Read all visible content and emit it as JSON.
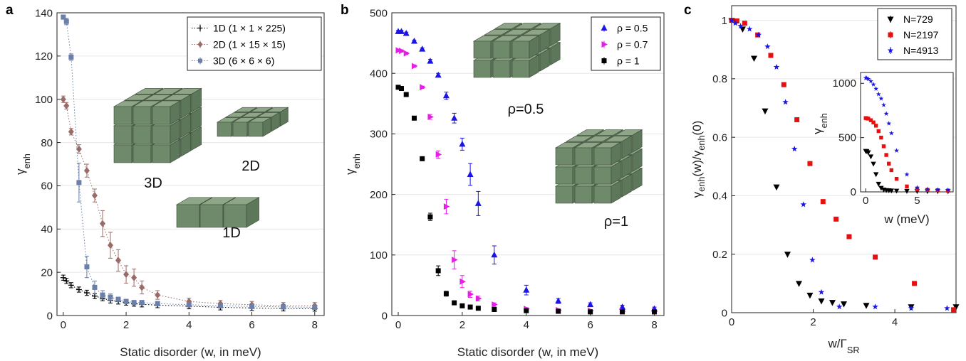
{
  "chart_data": [
    {
      "panel": "a",
      "type": "scatter",
      "xlabel": "Static disorder (w, in meV)",
      "ylabel": "γ_enh",
      "xlim": [
        -0.2,
        8.3
      ],
      "ylim": [
        0,
        140
      ],
      "xticks": [
        0,
        2,
        4,
        6,
        8
      ],
      "yticks": [
        0,
        20,
        40,
        60,
        80,
        100,
        120,
        140
      ],
      "grid": "horizontal",
      "legend_position": "top-right",
      "cube_labels": [
        "3D",
        "2D",
        "1D"
      ],
      "series": [
        {
          "name": "1D (1 × 1 × 225)",
          "color": "#000000",
          "marker": "plus",
          "line": "dotted",
          "x": [
            0,
            0.1,
            0.25,
            0.5,
            0.75,
            1,
            1.25,
            1.5,
            1.75,
            2,
            2.25,
            2.5,
            3,
            4,
            5,
            6,
            7,
            8
          ],
          "y": [
            17.5,
            16,
            14,
            12,
            10.5,
            9,
            8,
            7,
            6.5,
            6,
            5.5,
            5.2,
            4.8,
            4.3,
            3.8,
            3.5,
            3.3,
            3.2
          ],
          "err": [
            1.2,
            1.2,
            1.2,
            1.2,
            1.2,
            1.2,
            1.2,
            1.2,
            1.2,
            1.2,
            1.2,
            1.2,
            1.2,
            1.2,
            1.2,
            1.2,
            1.2,
            1.2
          ]
        },
        {
          "name": "2D (1 × 15 × 15)",
          "color": "#9b6b67",
          "marker": "diamond",
          "line": "dotted",
          "x": [
            0,
            0.1,
            0.25,
            0.5,
            0.75,
            1,
            1.25,
            1.5,
            1.75,
            2,
            2.25,
            2.5,
            3,
            4,
            5,
            6,
            7,
            8
          ],
          "y": [
            100,
            97,
            85,
            77,
            67,
            55.5,
            42.5,
            32.5,
            25.5,
            19,
            17.5,
            13,
            9.5,
            6.5,
            5.5,
            5,
            4.5,
            4.5
          ],
          "err": [
            1.5,
            1.5,
            1.5,
            2,
            3,
            3,
            6,
            6,
            5,
            4,
            4,
            3,
            2,
            1.5,
            1.5,
            1.5,
            1.5,
            1.5
          ]
        },
        {
          "name": "3D (6 × 6 × 6)",
          "color": "#6a7faa",
          "marker": "square",
          "line": "dotted",
          "x": [
            0,
            0.1,
            0.25,
            0.5,
            0.75,
            1,
            1.25,
            1.5,
            1.75,
            2,
            2.25,
            2.5,
            3,
            4,
            5,
            6,
            7,
            8
          ],
          "y": [
            138,
            136,
            119.5,
            61.5,
            22.5,
            13,
            9.5,
            8.5,
            7.5,
            6.5,
            6,
            6,
            5.5,
            5,
            4.5,
            4.2,
            4,
            3.8
          ],
          "err": [
            1,
            1.5,
            1.5,
            9,
            5,
            3,
            2,
            1.5,
            1,
            1,
            1,
            1,
            1,
            1,
            1,
            1,
            1,
            1
          ]
        }
      ]
    },
    {
      "panel": "b",
      "type": "scatter",
      "xlabel": "Static disorder (w, in meV)",
      "ylabel": "γ_enh",
      "xlim": [
        -0.2,
        8.3
      ],
      "ylim": [
        0,
        500
      ],
      "xticks": [
        0,
        2,
        4,
        6,
        8
      ],
      "yticks": [
        0,
        100,
        200,
        300,
        400,
        500
      ],
      "grid": "horizontal",
      "legend_position": "top-right",
      "cube_labels": [
        "ρ=0.5",
        "ρ=1"
      ],
      "series": [
        {
          "name": "ρ = 0.5",
          "color": "#1a14e6",
          "marker": "triangle-up",
          "x": [
            0,
            0.1,
            0.25,
            0.5,
            0.75,
            1,
            1.25,
            1.5,
            1.75,
            2,
            2.25,
            2.5,
            3,
            4,
            5,
            6,
            7,
            8
          ],
          "y": [
            469,
            469,
            466,
            453,
            440,
            420,
            397,
            363,
            326,
            283,
            233,
            185,
            100,
            42,
            24,
            18,
            14,
            11
          ],
          "err": [
            2,
            2,
            2,
            2,
            2,
            3,
            3,
            6,
            8,
            10,
            18,
            20,
            15,
            8,
            4,
            3,
            3,
            3
          ]
        },
        {
          "name": "ρ = 0.7",
          "color": "#e61ee6",
          "marker": "triangle-right",
          "x": [
            0,
            0.1,
            0.25,
            0.5,
            0.75,
            1,
            1.25,
            1.5,
            1.75,
            2,
            2.25,
            2.5,
            3,
            4,
            5,
            6,
            7,
            8
          ],
          "y": [
            438,
            437,
            433,
            412,
            377,
            328,
            266,
            180,
            92,
            56,
            35,
            28,
            18,
            11,
            9,
            8,
            7,
            7
          ],
          "err": [
            2,
            2,
            2,
            2,
            2,
            4,
            6,
            12,
            15,
            10,
            5,
            4,
            3,
            2,
            2,
            2,
            2,
            2
          ]
        },
        {
          "name": "ρ = 1",
          "color": "#000000",
          "marker": "square",
          "x": [
            0,
            0.1,
            0.25,
            0.5,
            0.75,
            1,
            1.25,
            1.5,
            1.75,
            2,
            2.25,
            2.5,
            3,
            4,
            5,
            6,
            7,
            8
          ],
          "y": [
            377,
            375,
            365,
            326,
            259,
            163,
            74,
            36,
            21,
            16,
            14,
            12,
            10,
            8,
            7,
            6,
            6,
            6
          ],
          "err": [
            2,
            2,
            2,
            2,
            3,
            6,
            8,
            4,
            3,
            2,
            2,
            2,
            2,
            2,
            2,
            2,
            2,
            2
          ]
        }
      ]
    },
    {
      "panel": "c",
      "type": "scatter",
      "xlabel": "w/Γ_SR",
      "ylabel": "γ_enh(w)/γ_enh(0)",
      "xlim": [
        0,
        5.5
      ],
      "ylim": [
        0,
        1.05
      ],
      "xticks": [
        0,
        2,
        4
      ],
      "yticks": [
        0,
        0.2,
        0.4,
        0.6,
        0.8,
        1
      ],
      "grid": "horizontal",
      "legend_position": "top-right",
      "series": [
        {
          "name": "N=729",
          "color": "#000000",
          "marker": "triangle-down",
          "x": [
            0,
            0.11,
            0.27,
            0.55,
            0.82,
            1.1,
            1.37,
            1.65,
            1.92,
            2.2,
            2.47,
            2.75,
            3.3,
            4.4,
            5.5
          ],
          "y": [
            1,
            0.995,
            0.97,
            0.87,
            0.69,
            0.43,
            0.2,
            0.1,
            0.06,
            0.04,
            0.035,
            0.03,
            0.025,
            0.02,
            0.02
          ]
        },
        {
          "name": "N=2197",
          "color": "#e61010",
          "marker": "square",
          "x": [
            0,
            0.13,
            0.32,
            0.64,
            0.96,
            1.28,
            1.6,
            1.92,
            2.24,
            2.56,
            2.88,
            3.52,
            4.48,
            5.44
          ],
          "y": [
            1,
            0.998,
            0.99,
            0.95,
            0.88,
            0.78,
            0.66,
            0.51,
            0.38,
            0.32,
            0.26,
            0.19,
            0.1,
            0.01
          ]
        },
        {
          "name": "N=4913",
          "color": "#1a14e6",
          "marker": "star",
          "x": [
            0,
            0.09,
            0.22,
            0.44,
            0.66,
            0.88,
            1.1,
            1.32,
            1.54,
            1.76,
            1.98,
            2.2,
            2.64,
            3.52,
            4.4,
            5.28
          ],
          "y": [
            1,
            0.99,
            0.98,
            0.97,
            0.95,
            0.91,
            0.84,
            0.72,
            0.56,
            0.37,
            0.18,
            0.07,
            0.02,
            0.02,
            0.015,
            0.015
          ]
        }
      ],
      "inset": {
        "type": "scatter",
        "xlabel": "w (meV)",
        "ylabel": "γ_enh",
        "xlim": [
          -0.5,
          8.5
        ],
        "ylim": [
          0,
          1100
        ],
        "xticks": [
          0,
          5
        ],
        "yticks": [
          0,
          500,
          1000
        ],
        "series": [
          {
            "name": "N=729",
            "color": "#000000",
            "marker": "triangle-down",
            "x": [
              0,
              0.1,
              0.25,
              0.5,
              0.75,
              1,
              1.25,
              1.5,
              1.75,
              2,
              2.25,
              2.5,
              3,
              4,
              5,
              6,
              7,
              8
            ],
            "y": [
              378,
              376,
              365,
              327,
              260,
              163,
              75,
              37,
              22,
              17,
              15,
              13,
              11,
              9,
              8,
              7,
              7,
              6
            ]
          },
          {
            "name": "N=2197",
            "color": "#e61010",
            "marker": "square",
            "x": [
              0,
              0.1,
              0.25,
              0.5,
              0.75,
              1,
              1.25,
              1.5,
              1.75,
              2,
              2.25,
              2.5,
              3,
              4,
              5,
              6,
              7,
              8
            ],
            "y": [
              680,
              678,
              675,
              660,
              640,
              610,
              560,
              500,
              420,
              340,
              260,
              200,
              120,
              50,
              25,
              18,
              15,
              12
            ]
          },
          {
            "name": "N=4913",
            "color": "#1a14e6",
            "marker": "star",
            "x": [
              0,
              0.1,
              0.25,
              0.5,
              0.75,
              1,
              1.25,
              1.5,
              1.75,
              2,
              2.25,
              2.5,
              3,
              4,
              5,
              6,
              7,
              8
            ],
            "y": [
              1050,
              1048,
              1040,
              1020,
              990,
              950,
              900,
              860,
              800,
              720,
              630,
              540,
              380,
              160,
              40,
              25,
              20,
              18
            ]
          }
        ]
      }
    }
  ],
  "panel_labels": {
    "a": "a",
    "b": "b",
    "c": "c"
  }
}
